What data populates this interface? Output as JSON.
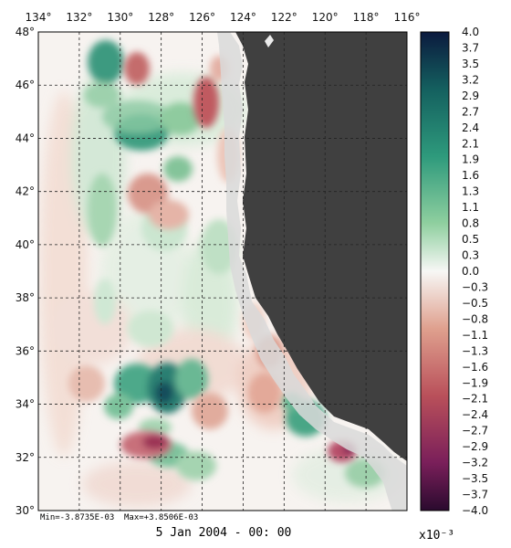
{
  "map": {
    "lon_labels": [
      "134°",
      "132°",
      "130°",
      "128°",
      "126°",
      "124°",
      "122°",
      "120°",
      "118°",
      "116°"
    ],
    "lat_labels": [
      "48°",
      "46°",
      "44°",
      "42°",
      "40°",
      "38°",
      "36°",
      "34°",
      "32°",
      "30°"
    ],
    "min_text": "Min=-3.8735E-03",
    "max_text": "Max=+3.8506E-03",
    "date_text": "5 Jan 2004 - 00: 00",
    "land_color": "#404040",
    "coast_band_color": "#d9d9d9",
    "grid_style": "dashed"
  },
  "colorbar": {
    "ticks": [
      "4.0",
      "3.7",
      "3.5",
      "3.2",
      "2.9",
      "2.7",
      "2.4",
      "2.1",
      "1.9",
      "1.6",
      "1.3",
      "1.1",
      "0.8",
      "0.5",
      "0.3",
      "0.0",
      "−0.3",
      "−0.5",
      "−0.8",
      "−1.1",
      "−1.3",
      "−1.6",
      "−1.9",
      "−2.1",
      "−2.4",
      "−2.7",
      "−2.9",
      "−3.2",
      "−3.5",
      "−3.7",
      "−4.0"
    ],
    "unit": "x10⁻³",
    "colors_top_to_bottom": [
      "#0b1a3e",
      "#14605f",
      "#2e9a7c",
      "#8fcf9f",
      "#f7f7f5",
      "#dfa08e",
      "#b9505a",
      "#7a1f5a",
      "#2a0a2e"
    ]
  }
}
